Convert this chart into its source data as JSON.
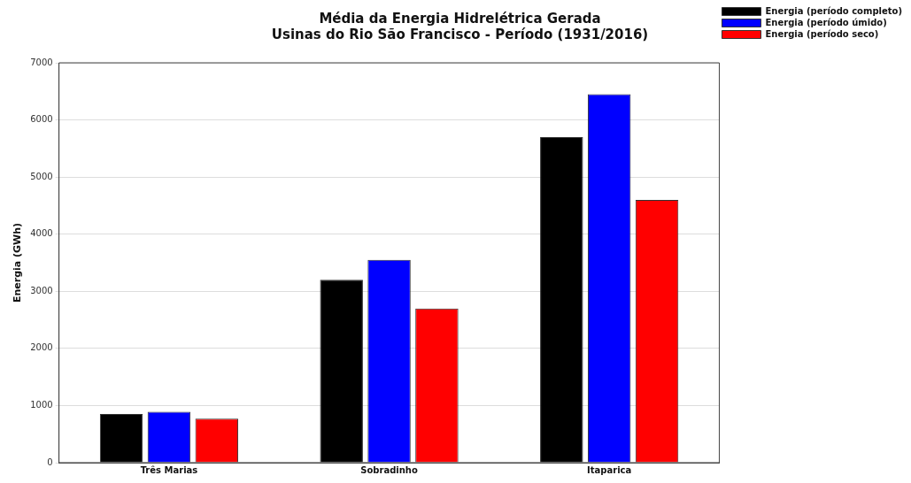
{
  "chart_data": {
    "type": "bar",
    "title": [
      "Média da Energia Hidrelétrica Gerada",
      "Usinas do Rio São Francisco - Período (1931/2016)"
    ],
    "ylabel": "Energia (GWh)",
    "categories": [
      "Três Marias",
      "Sobradinho",
      "Itaparica"
    ],
    "series": [
      {
        "name": "Energia (período completo)",
        "color": "#000000",
        "values": [
          850,
          3200,
          5700
        ]
      },
      {
        "name": "Energia (período úmido)",
        "color": "#0000ff",
        "values": [
          890,
          3550,
          6450
        ]
      },
      {
        "name": "Energia (período seco)",
        "color": "#ff0000",
        "values": [
          770,
          2700,
          4600
        ]
      }
    ],
    "ylim": [
      0,
      7000
    ],
    "yticks": [
      0,
      1000,
      2000,
      3000,
      4000,
      5000,
      6000,
      7000
    ],
    "grid": "y",
    "legend": "top right"
  }
}
